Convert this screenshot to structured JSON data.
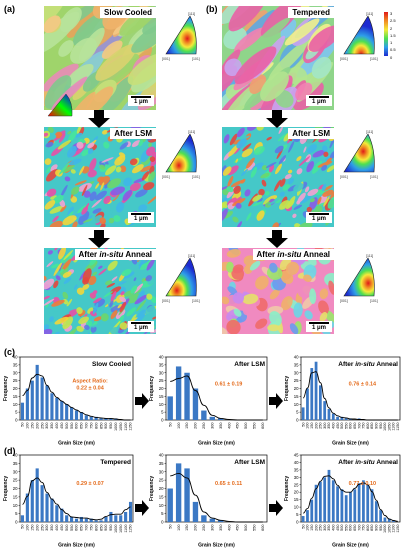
{
  "panel_letters": {
    "a": "(a)",
    "b": "(b)",
    "c": "(c)",
    "d": "(d)"
  },
  "maps": {
    "a_top_label": "Slow Cooled",
    "b_top_label": "Tempered",
    "after_lsm_label": "After LSM",
    "after_anneal_prefix": "After ",
    "after_anneal_italic": "in-situ",
    "after_anneal_suffix": " Anneal",
    "scalebar": "1 μm"
  },
  "ipf_labels": {
    "l001": "[001]",
    "l101": "[101]",
    "l111": "[111]"
  },
  "legend_ticks": [
    "0",
    "0.5",
    "1",
    "1.5",
    "2",
    "2.5",
    "3"
  ],
  "hist_common": {
    "ylabel": "Frequency",
    "xlabel": "Grain Size (nm)"
  },
  "chart_data": [
    {
      "type": "bar",
      "title": "Slow Cooled",
      "annotation": "Aspect Ratio:",
      "value": "0.22 ± 0.04",
      "categories": [
        "50",
        "100",
        "150",
        "200",
        "250",
        "300",
        "350",
        "400",
        "450",
        "500",
        "550",
        "600",
        "650",
        "700",
        "750",
        "800",
        "850",
        "900",
        "950",
        "1000",
        "1050",
        "1100",
        "1150"
      ],
      "values": [
        11,
        20,
        25,
        35,
        27,
        22,
        17,
        14,
        12,
        10,
        8,
        6,
        5,
        3,
        2,
        2,
        1,
        1,
        1,
        1,
        0,
        0,
        0
      ],
      "yticks": [
        0,
        5,
        10,
        15,
        20,
        25,
        30,
        35,
        40
      ],
      "ylim": [
        0,
        40
      ]
    },
    {
      "type": "bar",
      "title": "After LSM",
      "value": "0.61 ± 0.19",
      "categories": [
        "50",
        "100",
        "150",
        "200",
        "250",
        "300",
        "350",
        "400",
        "450",
        "500",
        "550",
        "600"
      ],
      "values": [
        15,
        34,
        30,
        20,
        6,
        2,
        1,
        0,
        0,
        0,
        0,
        0
      ],
      "yticks": [
        0,
        5,
        10,
        15,
        20,
        25,
        30,
        35,
        40
      ],
      "ylim": [
        0,
        40
      ]
    },
    {
      "type": "bar",
      "title_prefix": "After ",
      "title_italic": "in-situ",
      "title_suffix": " Anneal",
      "value": "0.76 ± 0.14",
      "categories": [
        "50",
        "100",
        "150",
        "200",
        "250",
        "300",
        "350",
        "400",
        "450",
        "500",
        "550",
        "600",
        "650",
        "700",
        "750",
        "800",
        "850",
        "900",
        "950",
        "1000",
        "1050",
        "1100",
        "1150"
      ],
      "values": [
        8,
        20,
        33,
        37,
        22,
        12,
        7,
        4,
        2,
        2,
        1,
        1,
        0,
        1,
        0,
        0,
        0,
        0,
        0,
        0,
        0,
        0,
        0
      ],
      "yticks": [
        0,
        5,
        10,
        15,
        20,
        25,
        30,
        35,
        40
      ],
      "ylim": [
        0,
        40
      ]
    },
    {
      "type": "bar",
      "title": "Tempered",
      "value": "0.29 ± 0.07",
      "categories": [
        "50",
        "100",
        "150",
        "200",
        "250",
        "300",
        "350",
        "400",
        "450",
        "500",
        "550",
        "600",
        "650",
        "700",
        "750",
        "800",
        "850",
        "900",
        "950",
        "1000",
        "1050",
        "1100",
        "1150"
      ],
      "values": [
        4,
        17,
        25,
        32,
        22,
        17,
        14,
        10,
        8,
        4,
        3,
        2,
        3,
        2,
        2,
        1,
        1,
        3,
        6,
        4,
        4,
        6,
        12
      ],
      "yticks": [
        0,
        5,
        10,
        15,
        20,
        25,
        30,
        35,
        40
      ],
      "ylim": [
        0,
        40
      ]
    },
    {
      "type": "bar",
      "title": "After LSM",
      "value": "0.65 ± 0.11",
      "categories": [
        "50",
        "100",
        "150",
        "200",
        "250",
        "300",
        "350",
        "400",
        "450",
        "500",
        "550",
        "600"
      ],
      "values": [
        20,
        35,
        32,
        12,
        4,
        2,
        1,
        0,
        0,
        0,
        0,
        0
      ],
      "yticks": [
        0,
        5,
        10,
        15,
        20,
        25,
        30,
        35,
        40
      ],
      "ylim": [
        0,
        40
      ]
    },
    {
      "type": "bar",
      "title_prefix": "After ",
      "title_italic": "in-situ",
      "title_suffix": " Anneal",
      "value": "0.77 ± 0.10",
      "categories": [
        "50",
        "100",
        "150",
        "200",
        "250",
        "300",
        "350",
        "400",
        "450",
        "500",
        "550",
        "600",
        "650",
        "700",
        "750",
        "800",
        "850",
        "900",
        "950",
        "1000",
        "1050",
        "1100",
        "1150"
      ],
      "values": [
        4,
        8,
        15,
        25,
        27,
        30,
        35,
        28,
        24,
        22,
        18,
        20,
        22,
        26,
        28,
        25,
        22,
        14,
        8,
        3,
        2,
        1,
        0
      ],
      "yticks": [
        0,
        5,
        10,
        15,
        20,
        25,
        30,
        35,
        40,
        45
      ],
      "ylim": [
        0,
        45
      ]
    }
  ]
}
